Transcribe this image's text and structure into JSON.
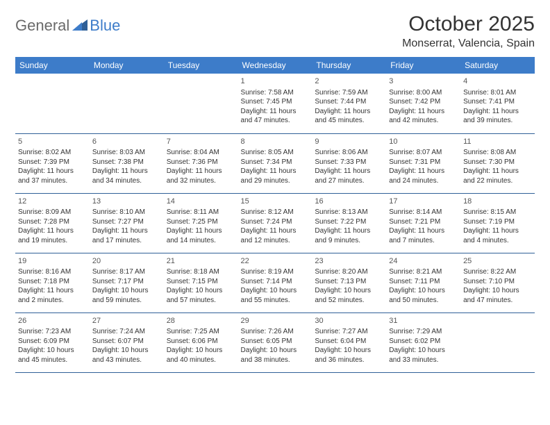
{
  "logo": {
    "part1": "General",
    "part2": "Blue"
  },
  "title": "October 2025",
  "location": "Monserrat, Valencia, Spain",
  "colors": {
    "header_bg": "#3d7cc9",
    "header_text": "#ffffff",
    "row_border": "#2f5f97",
    "text": "#333333",
    "logo_gray": "#6a6a6a",
    "logo_blue": "#3d7cc9"
  },
  "day_headers": [
    "Sunday",
    "Monday",
    "Tuesday",
    "Wednesday",
    "Thursday",
    "Friday",
    "Saturday"
  ],
  "weeks": [
    [
      null,
      null,
      null,
      {
        "n": "1",
        "sr": "Sunrise: 7:58 AM",
        "ss": "Sunset: 7:45 PM",
        "d1": "Daylight: 11 hours",
        "d2": "and 47 minutes."
      },
      {
        "n": "2",
        "sr": "Sunrise: 7:59 AM",
        "ss": "Sunset: 7:44 PM",
        "d1": "Daylight: 11 hours",
        "d2": "and 45 minutes."
      },
      {
        "n": "3",
        "sr": "Sunrise: 8:00 AM",
        "ss": "Sunset: 7:42 PM",
        "d1": "Daylight: 11 hours",
        "d2": "and 42 minutes."
      },
      {
        "n": "4",
        "sr": "Sunrise: 8:01 AM",
        "ss": "Sunset: 7:41 PM",
        "d1": "Daylight: 11 hours",
        "d2": "and 39 minutes."
      }
    ],
    [
      {
        "n": "5",
        "sr": "Sunrise: 8:02 AM",
        "ss": "Sunset: 7:39 PM",
        "d1": "Daylight: 11 hours",
        "d2": "and 37 minutes."
      },
      {
        "n": "6",
        "sr": "Sunrise: 8:03 AM",
        "ss": "Sunset: 7:38 PM",
        "d1": "Daylight: 11 hours",
        "d2": "and 34 minutes."
      },
      {
        "n": "7",
        "sr": "Sunrise: 8:04 AM",
        "ss": "Sunset: 7:36 PM",
        "d1": "Daylight: 11 hours",
        "d2": "and 32 minutes."
      },
      {
        "n": "8",
        "sr": "Sunrise: 8:05 AM",
        "ss": "Sunset: 7:34 PM",
        "d1": "Daylight: 11 hours",
        "d2": "and 29 minutes."
      },
      {
        "n": "9",
        "sr": "Sunrise: 8:06 AM",
        "ss": "Sunset: 7:33 PM",
        "d1": "Daylight: 11 hours",
        "d2": "and 27 minutes."
      },
      {
        "n": "10",
        "sr": "Sunrise: 8:07 AM",
        "ss": "Sunset: 7:31 PM",
        "d1": "Daylight: 11 hours",
        "d2": "and 24 minutes."
      },
      {
        "n": "11",
        "sr": "Sunrise: 8:08 AM",
        "ss": "Sunset: 7:30 PM",
        "d1": "Daylight: 11 hours",
        "d2": "and 22 minutes."
      }
    ],
    [
      {
        "n": "12",
        "sr": "Sunrise: 8:09 AM",
        "ss": "Sunset: 7:28 PM",
        "d1": "Daylight: 11 hours",
        "d2": "and 19 minutes."
      },
      {
        "n": "13",
        "sr": "Sunrise: 8:10 AM",
        "ss": "Sunset: 7:27 PM",
        "d1": "Daylight: 11 hours",
        "d2": "and 17 minutes."
      },
      {
        "n": "14",
        "sr": "Sunrise: 8:11 AM",
        "ss": "Sunset: 7:25 PM",
        "d1": "Daylight: 11 hours",
        "d2": "and 14 minutes."
      },
      {
        "n": "15",
        "sr": "Sunrise: 8:12 AM",
        "ss": "Sunset: 7:24 PM",
        "d1": "Daylight: 11 hours",
        "d2": "and 12 minutes."
      },
      {
        "n": "16",
        "sr": "Sunrise: 8:13 AM",
        "ss": "Sunset: 7:22 PM",
        "d1": "Daylight: 11 hours",
        "d2": "and 9 minutes."
      },
      {
        "n": "17",
        "sr": "Sunrise: 8:14 AM",
        "ss": "Sunset: 7:21 PM",
        "d1": "Daylight: 11 hours",
        "d2": "and 7 minutes."
      },
      {
        "n": "18",
        "sr": "Sunrise: 8:15 AM",
        "ss": "Sunset: 7:19 PM",
        "d1": "Daylight: 11 hours",
        "d2": "and 4 minutes."
      }
    ],
    [
      {
        "n": "19",
        "sr": "Sunrise: 8:16 AM",
        "ss": "Sunset: 7:18 PM",
        "d1": "Daylight: 11 hours",
        "d2": "and 2 minutes."
      },
      {
        "n": "20",
        "sr": "Sunrise: 8:17 AM",
        "ss": "Sunset: 7:17 PM",
        "d1": "Daylight: 10 hours",
        "d2": "and 59 minutes."
      },
      {
        "n": "21",
        "sr": "Sunrise: 8:18 AM",
        "ss": "Sunset: 7:15 PM",
        "d1": "Daylight: 10 hours",
        "d2": "and 57 minutes."
      },
      {
        "n": "22",
        "sr": "Sunrise: 8:19 AM",
        "ss": "Sunset: 7:14 PM",
        "d1": "Daylight: 10 hours",
        "d2": "and 55 minutes."
      },
      {
        "n": "23",
        "sr": "Sunrise: 8:20 AM",
        "ss": "Sunset: 7:13 PM",
        "d1": "Daylight: 10 hours",
        "d2": "and 52 minutes."
      },
      {
        "n": "24",
        "sr": "Sunrise: 8:21 AM",
        "ss": "Sunset: 7:11 PM",
        "d1": "Daylight: 10 hours",
        "d2": "and 50 minutes."
      },
      {
        "n": "25",
        "sr": "Sunrise: 8:22 AM",
        "ss": "Sunset: 7:10 PM",
        "d1": "Daylight: 10 hours",
        "d2": "and 47 minutes."
      }
    ],
    [
      {
        "n": "26",
        "sr": "Sunrise: 7:23 AM",
        "ss": "Sunset: 6:09 PM",
        "d1": "Daylight: 10 hours",
        "d2": "and 45 minutes."
      },
      {
        "n": "27",
        "sr": "Sunrise: 7:24 AM",
        "ss": "Sunset: 6:07 PM",
        "d1": "Daylight: 10 hours",
        "d2": "and 43 minutes."
      },
      {
        "n": "28",
        "sr": "Sunrise: 7:25 AM",
        "ss": "Sunset: 6:06 PM",
        "d1": "Daylight: 10 hours",
        "d2": "and 40 minutes."
      },
      {
        "n": "29",
        "sr": "Sunrise: 7:26 AM",
        "ss": "Sunset: 6:05 PM",
        "d1": "Daylight: 10 hours",
        "d2": "and 38 minutes."
      },
      {
        "n": "30",
        "sr": "Sunrise: 7:27 AM",
        "ss": "Sunset: 6:04 PM",
        "d1": "Daylight: 10 hours",
        "d2": "and 36 minutes."
      },
      {
        "n": "31",
        "sr": "Sunrise: 7:29 AM",
        "ss": "Sunset: 6:02 PM",
        "d1": "Daylight: 10 hours",
        "d2": "and 33 minutes."
      },
      null
    ]
  ]
}
